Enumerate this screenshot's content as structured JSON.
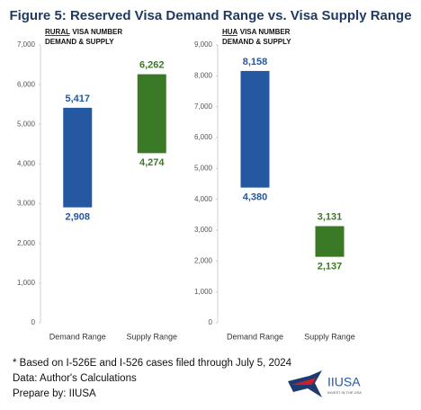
{
  "title": "Figure 5: Reserved Visa Demand Range vs. Visa Supply Range",
  "chart_data": [
    {
      "type": "range-bar",
      "label": "RURAL",
      "subtitle": [
        "VISA NUMBER",
        "DEMAND & SUPPLY"
      ],
      "categories": [
        "Demand Range",
        "Supply Range"
      ],
      "low": [
        2908,
        4274
      ],
      "low_labels": [
        "2,908",
        "4,274"
      ],
      "high": [
        5417,
        6262
      ],
      "high_labels": [
        "5,417",
        "6,262"
      ],
      "colors": [
        "#2458a0",
        "#3a7a26"
      ],
      "ylim": [
        0,
        7000
      ],
      "yticks": [
        0,
        {
          "value": 1000,
          "label": "1,000"
        },
        {
          "value": 2000,
          "label": "2,000"
        },
        {
          "value": 3000,
          "label": "3,000"
        },
        {
          "value": 4000,
          "label": "4,000"
        },
        {
          "value": 5000,
          "label": "5,000"
        },
        {
          "value": 6000,
          "label": "6,000"
        },
        {
          "value": 7000,
          "label": "7,000"
        }
      ]
    },
    {
      "type": "range-bar",
      "label": "HUA",
      "subtitle": [
        "VISA NUMBER",
        "DEMAND & SUPPLY"
      ],
      "categories": [
        "Demand Range",
        "Supply Range"
      ],
      "low": [
        4380,
        2137
      ],
      "low_labels": [
        "4,380",
        "2,137"
      ],
      "high": [
        8158,
        3131
      ],
      "high_labels": [
        "8,158",
        "3,131"
      ],
      "colors": [
        "#2458a0",
        "#3a7a26"
      ],
      "ylim": [
        0,
        9000
      ],
      "yticks": [
        0,
        {
          "value": 1000,
          "label": "1,000"
        },
        {
          "value": 2000,
          "label": "2,000"
        },
        {
          "value": 3000,
          "label": "3,000"
        },
        {
          "value": 4000,
          "label": "4,000"
        },
        {
          "value": 5000,
          "label": "5,000"
        },
        {
          "value": 6000,
          "label": "6,000"
        },
        {
          "value": 7000,
          "label": "7,000"
        },
        {
          "value": 8000,
          "label": "8,000"
        },
        {
          "value": 9000,
          "label": "9,000"
        }
      ]
    }
  ],
  "footnotes": [
    "* Based on I-526E and I-526 cases filed through July 5, 2024",
    "Data: Author's Calculations",
    "Prepare by: IIUSA"
  ],
  "logo": {
    "name": "IIUSA",
    "tagline": "INVEST IN THE USA"
  }
}
